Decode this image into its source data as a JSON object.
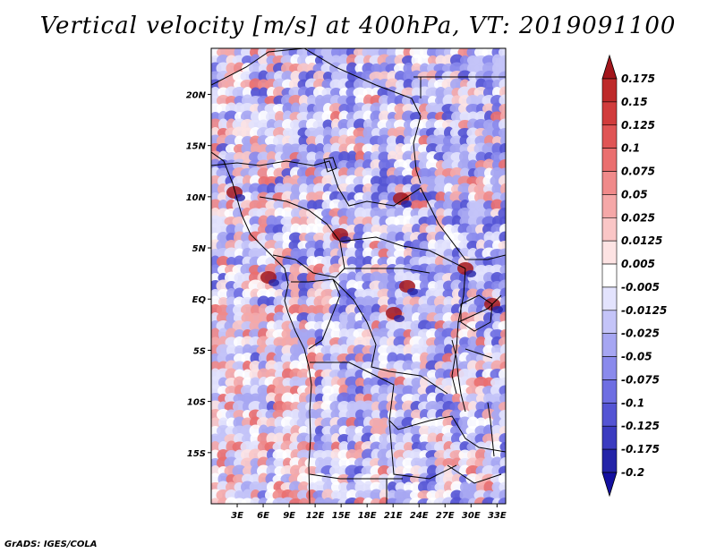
{
  "title": "Vertical velocity [m/s] at 400hPa, VT: 2019091100",
  "credit": "GrADS: IGES/COLA",
  "lat_labels": [
    "20N",
    "15N",
    "10N",
    "5N",
    "EQ",
    "5S",
    "10S",
    "15S"
  ],
  "lon_labels": [
    "3E",
    "6E",
    "9E",
    "12E",
    "15E",
    "18E",
    "21E",
    "24E",
    "27E",
    "30E",
    "33E"
  ],
  "lat_values": [
    20,
    15,
    10,
    5,
    0,
    -5,
    -10,
    -15
  ],
  "lon_values": [
    3,
    6,
    9,
    12,
    15,
    18,
    21,
    24,
    27,
    30,
    33
  ],
  "map_extent": {
    "lon_min": 0,
    "lon_max": 34,
    "lat_min": -20,
    "lat_max": 24.5
  },
  "colorbar": {
    "labels": [
      "0.175",
      "0.15",
      "0.125",
      "0.1",
      "0.075",
      "0.05",
      "0.025",
      "0.0125",
      "0.005",
      "-0.005",
      "-0.0125",
      "-0.025",
      "-0.05",
      "-0.075",
      "-0.1",
      "-0.125",
      "-0.175",
      "-0.2"
    ],
    "colors": [
      "#a3161c",
      "#be2a2a",
      "#d13c3c",
      "#e05555",
      "#ea6f6f",
      "#f08a8a",
      "#f5a8a8",
      "#fac6c6",
      "#fde3e3",
      "#ffffff",
      "#e3e3fd",
      "#c4c4f8",
      "#a6a6f2",
      "#8a8aec",
      "#6e6ee2",
      "#5454d4",
      "#3b3bc0",
      "#2424a8",
      "#1410a0"
    ]
  }
}
